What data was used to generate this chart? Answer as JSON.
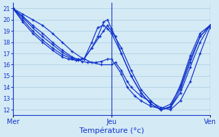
{
  "background_color": "#d4eaf5",
  "grid_color": "#aaccdd",
  "line_color": "#1133cc",
  "xlabel": "Température (°c)",
  "xlabel_color": "#1133cc",
  "day_labels": [
    "Mer",
    "Jeu",
    "Ven"
  ],
  "day_positions": [
    0.0,
    0.5,
    1.0
  ],
  "ylim": [
    11.5,
    21.5
  ],
  "yticks": [
    12,
    13,
    14,
    15,
    16,
    17,
    18,
    19,
    20,
    21
  ],
  "series": [
    {
      "x": [
        0.0,
        0.05,
        0.1,
        0.15,
        0.2,
        0.25,
        0.3,
        0.35,
        0.4,
        0.45,
        0.5,
        0.52,
        0.55,
        0.58,
        0.6,
        0.65,
        0.7,
        0.75,
        0.8,
        0.85,
        0.9,
        0.95,
        1.0
      ],
      "y": [
        21.0,
        20.5,
        20.0,
        19.5,
        18.8,
        18.0,
        17.2,
        16.6,
        16.2,
        16.0,
        16.0,
        16.2,
        15.5,
        14.5,
        14.0,
        13.2,
        12.7,
        12.2,
        12.0,
        12.8,
        14.5,
        17.0,
        19.3
      ]
    },
    {
      "x": [
        0.0,
        0.05,
        0.1,
        0.15,
        0.2,
        0.25,
        0.3,
        0.35,
        0.38,
        0.42,
        0.45,
        0.48,
        0.5,
        0.55,
        0.58,
        0.62,
        0.65,
        0.7,
        0.75,
        0.8,
        0.85,
        0.9,
        0.95,
        1.0
      ],
      "y": [
        21.0,
        20.3,
        19.5,
        18.8,
        18.0,
        17.3,
        16.7,
        16.3,
        16.2,
        16.2,
        16.3,
        16.5,
        16.5,
        15.2,
        14.0,
        13.2,
        12.8,
        12.3,
        12.1,
        12.5,
        14.0,
        16.5,
        18.5,
        19.5
      ]
    },
    {
      "x": [
        0.0,
        0.05,
        0.1,
        0.15,
        0.2,
        0.25,
        0.3,
        0.33,
        0.36,
        0.4,
        0.43,
        0.46,
        0.48,
        0.5,
        0.52,
        0.55,
        0.6,
        0.65,
        0.7,
        0.75,
        0.8,
        0.85,
        0.9,
        0.95,
        1.0
      ],
      "y": [
        21.0,
        20.2,
        19.3,
        18.5,
        17.8,
        17.1,
        16.6,
        16.5,
        16.5,
        17.5,
        18.5,
        19.8,
        20.0,
        19.2,
        18.5,
        17.0,
        15.0,
        13.5,
        12.5,
        12.0,
        12.3,
        14.2,
        16.8,
        18.8,
        19.5
      ]
    },
    {
      "x": [
        0.0,
        0.05,
        0.1,
        0.15,
        0.2,
        0.25,
        0.3,
        0.33,
        0.36,
        0.4,
        0.43,
        0.46,
        0.48,
        0.5,
        0.55,
        0.6,
        0.65,
        0.7,
        0.75,
        0.8,
        0.85,
        0.9,
        0.95,
        1.0
      ],
      "y": [
        21.0,
        20.0,
        19.0,
        18.2,
        17.5,
        16.9,
        16.5,
        16.4,
        16.5,
        18.0,
        19.3,
        19.5,
        19.2,
        18.8,
        17.0,
        15.0,
        13.5,
        12.5,
        12.0,
        12.2,
        13.8,
        16.2,
        18.5,
        19.5
      ]
    },
    {
      "x": [
        0.0,
        0.05,
        0.1,
        0.15,
        0.2,
        0.25,
        0.28,
        0.32,
        0.36,
        0.4,
        0.44,
        0.46,
        0.48,
        0.5,
        0.55,
        0.6,
        0.65,
        0.7,
        0.75,
        0.8,
        0.85,
        0.9,
        0.95,
        1.0
      ],
      "y": [
        21.0,
        19.8,
        18.8,
        18.0,
        17.3,
        16.7,
        16.5,
        16.4,
        16.5,
        17.5,
        18.5,
        19.0,
        19.5,
        19.0,
        17.5,
        15.5,
        13.8,
        12.8,
        12.0,
        12.2,
        13.5,
        15.8,
        18.0,
        19.5
      ]
    }
  ]
}
